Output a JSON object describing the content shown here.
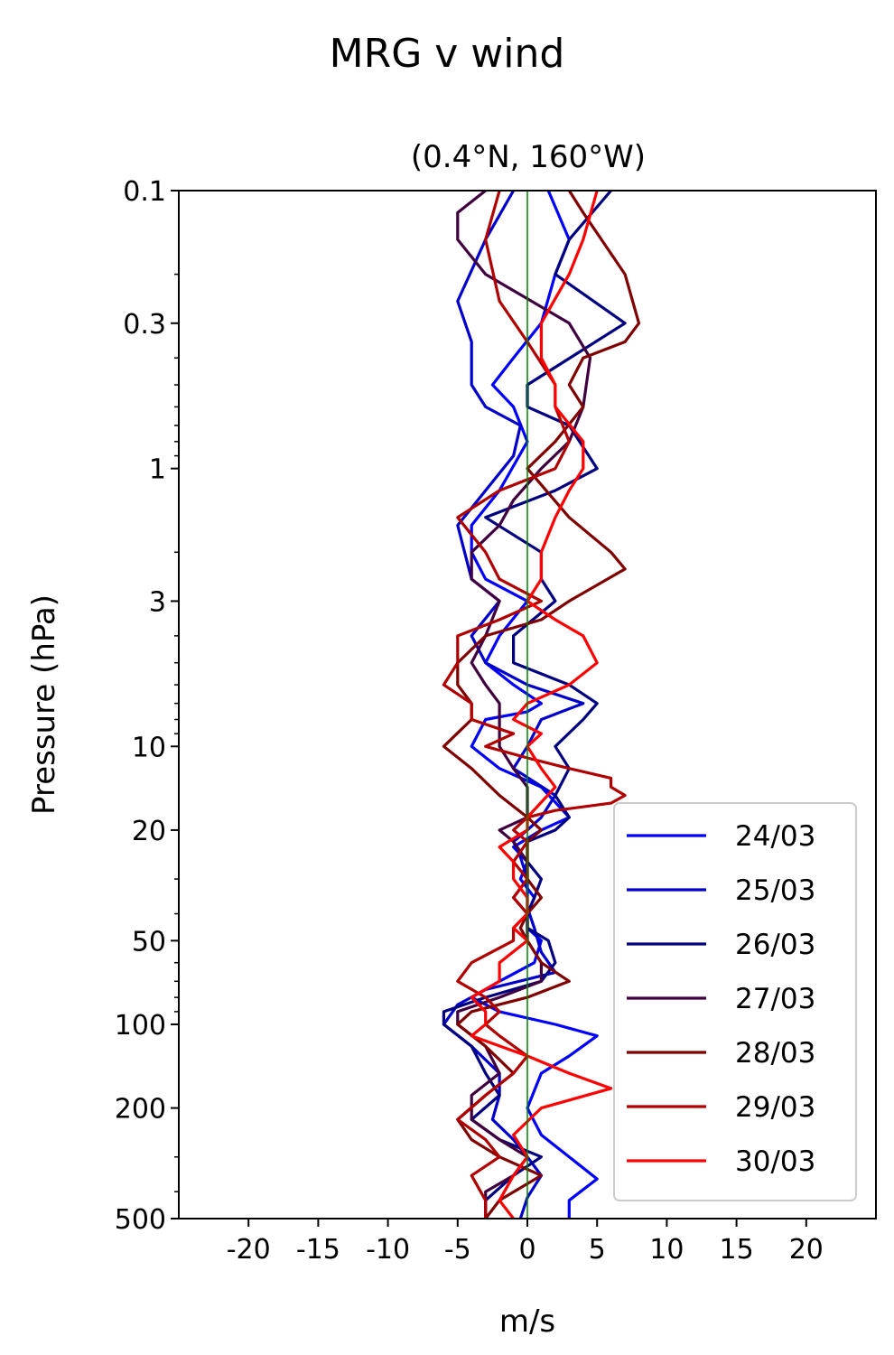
{
  "chart_data": {
    "type": "line",
    "title": "MRG v wind",
    "subtitle": "(0.4°N, 160°W)",
    "xlabel": "m/s",
    "ylabel": "Pressure (hPa)",
    "xlim": [
      -25,
      25
    ],
    "ylim": [
      500,
      0.1
    ],
    "yscale": "log",
    "xticks": [
      -20,
      -15,
      -10,
      -5,
      0,
      5,
      10,
      15,
      20
    ],
    "xtick_labels": [
      "-20",
      "-15",
      "-10",
      "-5",
      "0",
      "5",
      "10",
      "15",
      "20"
    ],
    "yticks": [
      0.1,
      0.3,
      1,
      3,
      10,
      20,
      50,
      100,
      200,
      500
    ],
    "ytick_labels": [
      "0.1",
      "0.3",
      "1",
      "3",
      "10",
      "20",
      "50",
      "100",
      "200",
      "500"
    ],
    "reference_line": {
      "x": 0,
      "color": "#008000"
    },
    "legend_location": "lower right",
    "series": [
      {
        "name": "24/03",
        "color": "#0000ff",
        "points": [
          [
            1.5,
            0.1
          ],
          [
            3,
            0.15
          ],
          [
            2,
            0.2
          ],
          [
            1,
            0.3
          ],
          [
            -1,
            0.4
          ],
          [
            -2.5,
            0.5
          ],
          [
            -1,
            0.6
          ],
          [
            0,
            0.8
          ],
          [
            -2,
            1.2
          ],
          [
            -4,
            1.6
          ],
          [
            -4,
            2
          ],
          [
            -3,
            2.5
          ],
          [
            0,
            3
          ],
          [
            -2,
            4
          ],
          [
            -3,
            5
          ],
          [
            -1,
            6
          ],
          [
            1,
            7
          ],
          [
            0,
            7.5
          ],
          [
            -3,
            8
          ],
          [
            -4,
            10
          ],
          [
            -2,
            12
          ],
          [
            1,
            14
          ],
          [
            3,
            18
          ],
          [
            1,
            20
          ],
          [
            -1,
            23
          ],
          [
            0,
            26
          ],
          [
            -0.5,
            30
          ],
          [
            0.5,
            35
          ],
          [
            0,
            40
          ],
          [
            0,
            45
          ],
          [
            1,
            50
          ],
          [
            0.5,
            60
          ],
          [
            -2,
            70
          ],
          [
            -4,
            80
          ],
          [
            -2,
            90
          ],
          [
            2,
            100
          ],
          [
            5,
            110
          ],
          [
            3,
            130
          ],
          [
            1,
            150
          ],
          [
            0,
            200
          ],
          [
            1,
            250
          ],
          [
            3,
            300
          ],
          [
            5,
            360
          ],
          [
            3,
            430
          ],
          [
            3,
            500
          ]
        ]
      },
      {
        "name": "25/03",
        "color": "#0000cc",
        "points": [
          [
            -1,
            0.1
          ],
          [
            -3,
            0.15
          ],
          [
            -5,
            0.25
          ],
          [
            -4,
            0.35
          ],
          [
            -4,
            0.5
          ],
          [
            -3,
            0.6
          ],
          [
            -0.5,
            0.7
          ],
          [
            -1,
            0.9
          ],
          [
            -3,
            1.2
          ],
          [
            -5,
            1.6
          ],
          [
            -4.5,
            2
          ],
          [
            -4,
            2.5
          ],
          [
            -2,
            3
          ],
          [
            -4,
            4
          ],
          [
            -3,
            5
          ],
          [
            0,
            6
          ],
          [
            4,
            7
          ],
          [
            1,
            8
          ],
          [
            0,
            10
          ],
          [
            -1,
            12
          ],
          [
            2,
            15
          ],
          [
            1,
            18
          ],
          [
            0,
            20
          ],
          [
            -1,
            22
          ],
          [
            -0.5,
            25
          ],
          [
            0,
            30
          ],
          [
            0,
            38
          ],
          [
            0.5,
            45
          ],
          [
            1,
            55
          ],
          [
            2,
            65
          ],
          [
            -3,
            75
          ],
          [
            -5,
            85
          ],
          [
            -6,
            100
          ],
          [
            -4,
            120
          ],
          [
            -2,
            150
          ],
          [
            -2,
            180
          ],
          [
            -2.5,
            220
          ],
          [
            -1,
            260
          ],
          [
            0,
            300
          ],
          [
            1,
            350
          ],
          [
            0,
            420
          ],
          [
            -0.5,
            500
          ]
        ]
      },
      {
        "name": "26/03",
        "color": "#000080",
        "points": [
          [
            6,
            0.1
          ],
          [
            3,
            0.15
          ],
          [
            2,
            0.2
          ],
          [
            7,
            0.3
          ],
          [
            0,
            0.5
          ],
          [
            0,
            0.6
          ],
          [
            3,
            0.7
          ],
          [
            5,
            1
          ],
          [
            2,
            1.2
          ],
          [
            -3,
            1.5
          ],
          [
            1,
            2
          ],
          [
            1,
            2.5
          ],
          [
            2,
            3
          ],
          [
            -1,
            4
          ],
          [
            -1,
            5
          ],
          [
            3,
            6
          ],
          [
            5,
            7
          ],
          [
            4,
            8
          ],
          [
            2,
            10
          ],
          [
            3,
            12
          ],
          [
            2,
            15
          ],
          [
            3,
            18
          ],
          [
            2,
            20
          ],
          [
            0,
            22
          ],
          [
            0,
            26
          ],
          [
            1,
            30
          ],
          [
            0.5,
            35
          ],
          [
            0,
            40
          ],
          [
            0,
            45
          ],
          [
            1.5,
            50
          ],
          [
            2,
            60
          ],
          [
            1,
            70
          ],
          [
            -3,
            80
          ],
          [
            -6,
            90
          ],
          [
            -6,
            100
          ],
          [
            -4,
            120
          ],
          [
            -3,
            150
          ],
          [
            -2,
            180
          ],
          [
            -4,
            220
          ],
          [
            -2,
            260
          ],
          [
            1,
            300
          ],
          [
            -1,
            350
          ],
          [
            -3,
            430
          ],
          [
            -3,
            500
          ]
        ]
      },
      {
        "name": "27/03",
        "color": "#400040",
        "points": [
          [
            -3,
            0.1
          ],
          [
            -5,
            0.12
          ],
          [
            -5,
            0.15
          ],
          [
            -3,
            0.2
          ],
          [
            3,
            0.3
          ],
          [
            4.5,
            0.4
          ],
          [
            4,
            0.6
          ],
          [
            3,
            0.8
          ],
          [
            1,
            1
          ],
          [
            -1,
            1.3
          ],
          [
            -2,
            1.6
          ],
          [
            -4,
            2
          ],
          [
            -4,
            2.5
          ],
          [
            -2,
            3
          ],
          [
            -3,
            4
          ],
          [
            -4,
            5
          ],
          [
            -3,
            6
          ],
          [
            -2,
            7
          ],
          [
            -2,
            8
          ],
          [
            -2,
            10
          ],
          [
            -1,
            12
          ],
          [
            0,
            14
          ],
          [
            0,
            18
          ],
          [
            -2,
            20
          ],
          [
            -1,
            22
          ],
          [
            0,
            26
          ],
          [
            0,
            30
          ],
          [
            -1,
            35
          ],
          [
            0,
            40
          ],
          [
            0,
            45
          ],
          [
            0,
            50
          ],
          [
            1,
            60
          ],
          [
            1,
            70
          ],
          [
            -2,
            80
          ],
          [
            -5,
            90
          ],
          [
            -5,
            100
          ],
          [
            -3,
            120
          ],
          [
            -2,
            150
          ],
          [
            -4,
            180
          ],
          [
            -4,
            220
          ],
          [
            -2,
            260
          ],
          [
            0,
            300
          ],
          [
            -1,
            350
          ],
          [
            -3,
            400
          ],
          [
            -3,
            500
          ]
        ]
      },
      {
        "name": "28/03",
        "color": "#800000",
        "points": [
          [
            3,
            0.1
          ],
          [
            4,
            0.12
          ],
          [
            7,
            0.2
          ],
          [
            8,
            0.3
          ],
          [
            7,
            0.35
          ],
          [
            4,
            0.4
          ],
          [
            3,
            0.5
          ],
          [
            4,
            0.6
          ],
          [
            2,
            0.8
          ],
          [
            0,
            1
          ],
          [
            3,
            1.5
          ],
          [
            6,
            2
          ],
          [
            7,
            2.3
          ],
          [
            3,
            3
          ],
          [
            1,
            3.5
          ],
          [
            -3,
            4
          ],
          [
            -5,
            5
          ],
          [
            -5,
            6
          ],
          [
            -4,
            7
          ],
          [
            -4,
            8
          ],
          [
            -6,
            10
          ],
          [
            -4,
            12
          ],
          [
            -2,
            15
          ],
          [
            0,
            18
          ],
          [
            1,
            20
          ],
          [
            0,
            22
          ],
          [
            0,
            26
          ],
          [
            0,
            30
          ],
          [
            1,
            35
          ],
          [
            0,
            40
          ],
          [
            -0.5,
            45
          ],
          [
            0,
            50
          ],
          [
            1,
            60
          ],
          [
            3,
            70
          ],
          [
            0,
            80
          ],
          [
            -4,
            90
          ],
          [
            -5,
            100
          ],
          [
            -3,
            120
          ],
          [
            -1,
            150
          ],
          [
            -3,
            180
          ],
          [
            -5,
            220
          ],
          [
            -4,
            260
          ],
          [
            -2,
            300
          ],
          [
            1,
            350
          ],
          [
            -2,
            430
          ],
          [
            -3,
            500
          ]
        ]
      },
      {
        "name": "29/03",
        "color": "#b00000",
        "points": [
          [
            -2,
            0.1
          ],
          [
            -3,
            0.15
          ],
          [
            -2,
            0.25
          ],
          [
            0,
            0.35
          ],
          [
            2,
            0.5
          ],
          [
            2,
            0.6
          ],
          [
            3,
            0.8
          ],
          [
            2,
            1
          ],
          [
            -2,
            1.2
          ],
          [
            -5,
            1.5
          ],
          [
            -3,
            2
          ],
          [
            -2,
            2.5
          ],
          [
            1,
            3
          ],
          [
            -2,
            3.5
          ],
          [
            -5,
            4
          ],
          [
            -5,
            5
          ],
          [
            -6,
            6
          ],
          [
            -4,
            7
          ],
          [
            -4,
            8
          ],
          [
            -1,
            9
          ],
          [
            -3,
            10
          ],
          [
            0,
            11
          ],
          [
            3,
            12
          ],
          [
            6,
            13
          ],
          [
            6,
            14
          ],
          [
            7,
            15
          ],
          [
            6,
            16
          ],
          [
            2,
            17
          ],
          [
            0,
            18
          ],
          [
            -1,
            20
          ],
          [
            0,
            22
          ],
          [
            -1,
            26
          ],
          [
            0,
            30
          ],
          [
            -1,
            35
          ],
          [
            0,
            40
          ],
          [
            -1,
            45
          ],
          [
            -1,
            50
          ],
          [
            -4,
            60
          ],
          [
            -5,
            70
          ],
          [
            -3,
            80
          ],
          [
            -2,
            90
          ],
          [
            -3,
            100
          ],
          [
            -2,
            110
          ],
          [
            0,
            130
          ],
          [
            -1,
            150
          ],
          [
            -3,
            180
          ],
          [
            -5,
            220
          ],
          [
            -3,
            260
          ],
          [
            -2,
            300
          ],
          [
            -4,
            350
          ],
          [
            -3,
            430
          ],
          [
            -3,
            500
          ]
        ]
      },
      {
        "name": "30/03",
        "color": "#ff0000",
        "points": [
          [
            5,
            0.1
          ],
          [
            4,
            0.15
          ],
          [
            3,
            0.2
          ],
          [
            1,
            0.3
          ],
          [
            1,
            0.4
          ],
          [
            2,
            0.5
          ],
          [
            2,
            0.6
          ],
          [
            4,
            0.8
          ],
          [
            4,
            1
          ],
          [
            3,
            1.2
          ],
          [
            2,
            1.5
          ],
          [
            1,
            2
          ],
          [
            1,
            2.5
          ],
          [
            0,
            3
          ],
          [
            2,
            3.5
          ],
          [
            4,
            4
          ],
          [
            5,
            5
          ],
          [
            3,
            6
          ],
          [
            0,
            7
          ],
          [
            -1,
            8
          ],
          [
            1,
            9
          ],
          [
            0,
            10
          ],
          [
            1,
            12
          ],
          [
            2,
            14
          ],
          [
            0,
            18
          ],
          [
            0,
            20
          ],
          [
            -2,
            23
          ],
          [
            -1,
            26
          ],
          [
            -1,
            30
          ],
          [
            0,
            35
          ],
          [
            0,
            40
          ],
          [
            -1,
            45
          ],
          [
            0,
            50
          ],
          [
            -2,
            60
          ],
          [
            -2,
            70
          ],
          [
            -4,
            80
          ],
          [
            -3,
            90
          ],
          [
            -3,
            100
          ],
          [
            -4,
            110
          ],
          [
            0,
            130
          ],
          [
            3,
            150
          ],
          [
            6,
            170
          ],
          [
            1,
            200
          ],
          [
            -1,
            250
          ],
          [
            0,
            300
          ],
          [
            -1,
            350
          ],
          [
            -2,
            430
          ],
          [
            -1,
            500
          ]
        ]
      }
    ]
  }
}
